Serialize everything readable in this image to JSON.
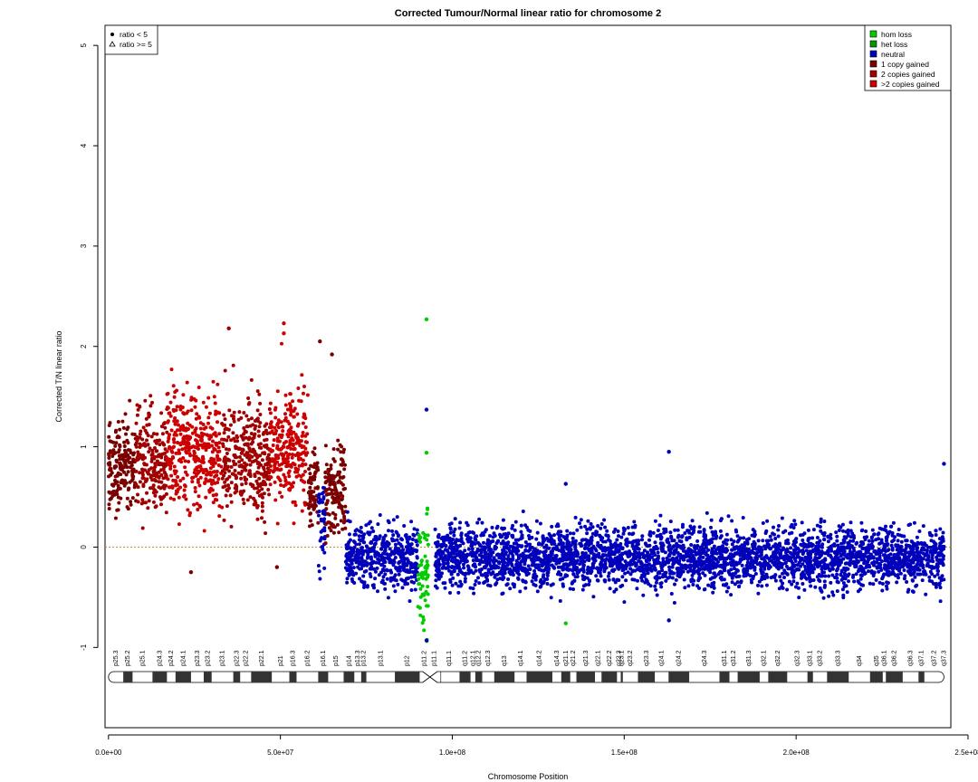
{
  "chart_data": {
    "type": "scatter",
    "title": "Corrected Tumour/Normal linear ratio for chromosome  2",
    "xlabel": "Chromosome Position",
    "ylabel": "Corrected T/N linear ratio",
    "xlim": [
      -1000000,
      245000000
    ],
    "ylim": [
      -1.8,
      5.2
    ],
    "x_ticks": [
      0,
      50000000,
      100000000,
      150000000,
      200000000,
      250000000
    ],
    "x_tick_labels": [
      "0.0e+00",
      "5.0e+07",
      "1.0e+08",
      "1.5e+08",
      "2.0e+08",
      "2.5e+08"
    ],
    "y_ticks": [
      -1,
      0,
      1,
      2,
      3,
      4,
      5
    ],
    "y_tick_labels": [
      "-1",
      "0",
      "1",
      "2",
      "3",
      "4",
      "5"
    ],
    "reference_line_y": 0,
    "grid": false,
    "shape_legend": {
      "position": "top-left",
      "entries": [
        {
          "symbol": "circle",
          "label": "ratio < 5"
        },
        {
          "symbol": "triangle",
          "label": "ratio >= 5"
        }
      ]
    },
    "legend": {
      "position": "top-right",
      "entries": [
        {
          "label": "hom loss",
          "color": "#00CC00"
        },
        {
          "label": "het loss",
          "color": "#009900"
        },
        {
          "label": "neutral",
          "color": "#0000BB"
        },
        {
          "label": "1 copy gained",
          "color": "#7A0000"
        },
        {
          "label": "2 copies gained",
          "color": "#A00000"
        },
        {
          "label": ">2 copies gained",
          "color": "#CC0000"
        }
      ]
    },
    "segments": [
      {
        "start": 0,
        "end": 8000000,
        "state": "1 copy gained",
        "mean": 0.78,
        "spread": 0.22
      },
      {
        "start": 8000000,
        "end": 17000000,
        "state": "2 copies gained",
        "mean": 0.85,
        "spread": 0.25
      },
      {
        "start": 17000000,
        "end": 33000000,
        "state": ">2 copies gained",
        "mean": 0.95,
        "spread": 0.28
      },
      {
        "start": 33000000,
        "end": 47000000,
        "state": "2 copies gained",
        "mean": 0.9,
        "spread": 0.27
      },
      {
        "start": 47000000,
        "end": 58000000,
        "state": ">2 copies gained",
        "mean": 0.98,
        "spread": 0.28
      },
      {
        "start": 58000000,
        "end": 61000000,
        "state": "1 copy gained",
        "mean": 0.55,
        "spread": 0.2
      },
      {
        "start": 61000000,
        "end": 63000000,
        "state": "neutral",
        "mean": 0.3,
        "spread": 0.25
      },
      {
        "start": 63000000,
        "end": 69000000,
        "state": "1 copy gained",
        "mean": 0.55,
        "spread": 0.22
      },
      {
        "start": 69000000,
        "end": 90000000,
        "state": "neutral",
        "mean": -0.1,
        "spread": 0.15
      },
      {
        "start": 90000000,
        "end": 93000000,
        "state": "hom loss",
        "mean": -0.3,
        "spread": 0.3
      },
      {
        "start": 95000000,
        "end": 243000000,
        "state": "neutral",
        "mean": -0.1,
        "spread": 0.15
      }
    ],
    "outliers": [
      {
        "x": 92500000,
        "y": 2.27,
        "state": "hom loss"
      },
      {
        "x": 92500000,
        "y": 1.37,
        "state": "neutral"
      },
      {
        "x": 92500000,
        "y": 0.94,
        "state": "hom loss"
      },
      {
        "x": 92500000,
        "y": -0.93,
        "state": "neutral"
      },
      {
        "x": 51000000,
        "y": 2.23,
        "state": ">2 copies gained"
      },
      {
        "x": 51000000,
        "y": 2.13,
        "state": ">2 copies gained"
      },
      {
        "x": 35000000,
        "y": 2.18,
        "state": "2 copies gained"
      },
      {
        "x": 61500000,
        "y": 2.05,
        "state": "1 copy gained"
      },
      {
        "x": 65000000,
        "y": 1.92,
        "state": "1 copy gained"
      },
      {
        "x": 163000000,
        "y": 0.95,
        "state": "neutral"
      },
      {
        "x": 163000000,
        "y": -0.73,
        "state": "neutral"
      },
      {
        "x": 243000000,
        "y": 0.83,
        "state": "neutral"
      },
      {
        "x": 133000000,
        "y": 0.63,
        "state": "neutral"
      },
      {
        "x": 133000000,
        "y": -0.76,
        "state": "hom loss"
      },
      {
        "x": 49000000,
        "y": -0.2,
        "state": "1 copy gained"
      },
      {
        "x": 24000000,
        "y": -0.25,
        "state": "1 copy gained"
      }
    ],
    "ideogram": {
      "centromere": 93500000,
      "length": 243000000,
      "bands": [
        {
          "name": "p25.3",
          "start": 0,
          "end": 4300000,
          "stain": "gneg"
        },
        {
          "name": "p25.2",
          "start": 4300000,
          "end": 7000000,
          "stain": "gpos"
        },
        {
          "name": "p25.1",
          "start": 7000000,
          "end": 12800000,
          "stain": "gneg"
        },
        {
          "name": "p24.3",
          "start": 12800000,
          "end": 17000000,
          "stain": "gpos"
        },
        {
          "name": "p24.2",
          "start": 17000000,
          "end": 19500000,
          "stain": "gneg"
        },
        {
          "name": "p24.1",
          "start": 19500000,
          "end": 24000000,
          "stain": "gpos"
        },
        {
          "name": "p23.3",
          "start": 24000000,
          "end": 27700000,
          "stain": "gneg"
        },
        {
          "name": "p23.2",
          "start": 27700000,
          "end": 30000000,
          "stain": "gpos"
        },
        {
          "name": "p23.1",
          "start": 30000000,
          "end": 36300000,
          "stain": "gneg"
        },
        {
          "name": "p22.3",
          "start": 36300000,
          "end": 38300000,
          "stain": "gpos"
        },
        {
          "name": "p22.2",
          "start": 38300000,
          "end": 41500000,
          "stain": "gneg"
        },
        {
          "name": "p22.1",
          "start": 41500000,
          "end": 47500000,
          "stain": "gpos"
        },
        {
          "name": "p21",
          "start": 47500000,
          "end": 52600000,
          "stain": "gneg"
        },
        {
          "name": "p16.3",
          "start": 52600000,
          "end": 54700000,
          "stain": "gpos"
        },
        {
          "name": "p16.2",
          "start": 54700000,
          "end": 61000000,
          "stain": "gneg"
        },
        {
          "name": "p16.1",
          "start": 61000000,
          "end": 63900000,
          "stain": "gpos"
        },
        {
          "name": "p15",
          "start": 63900000,
          "end": 68400000,
          "stain": "gneg"
        },
        {
          "name": "p14",
          "start": 68400000,
          "end": 71500000,
          "stain": "gpos"
        },
        {
          "name": "p13.3",
          "start": 71500000,
          "end": 73500000,
          "stain": "gneg"
        },
        {
          "name": "p13.2",
          "start": 73500000,
          "end": 75000000,
          "stain": "gpos"
        },
        {
          "name": "p13.1",
          "start": 75000000,
          "end": 83300000,
          "stain": "gneg"
        },
        {
          "name": "p12",
          "start": 83300000,
          "end": 90500000,
          "stain": "gpos"
        },
        {
          "name": "p11.2",
          "start": 90500000,
          "end": 93300000,
          "stain": "gneg"
        },
        {
          "name": "p11.1",
          "start": 93300000,
          "end": 96100000,
          "stain": "acen"
        },
        {
          "name": "q11.1",
          "start": 96100000,
          "end": 102100000,
          "stain": "gneg"
        },
        {
          "name": "q11.2",
          "start": 102100000,
          "end": 105300000,
          "stain": "gpos"
        },
        {
          "name": "q12.1",
          "start": 105300000,
          "end": 106700000,
          "stain": "gneg"
        },
        {
          "name": "q12.2",
          "start": 106700000,
          "end": 108700000,
          "stain": "gpos"
        },
        {
          "name": "q12.3",
          "start": 108700000,
          "end": 112200000,
          "stain": "gneg"
        },
        {
          "name": "q13",
          "start": 112200000,
          "end": 118100000,
          "stain": "gpos"
        },
        {
          "name": "q14.1",
          "start": 118100000,
          "end": 121600000,
          "stain": "gneg"
        },
        {
          "name": "q14.2",
          "start": 121600000,
          "end": 129100000,
          "stain": "gpos"
        },
        {
          "name": "q14.3",
          "start": 129100000,
          "end": 131700000,
          "stain": "gneg"
        },
        {
          "name": "q21.1",
          "start": 131700000,
          "end": 134300000,
          "stain": "gpos"
        },
        {
          "name": "q21.2",
          "start": 134300000,
          "end": 136100000,
          "stain": "gneg"
        },
        {
          "name": "q21.3",
          "start": 136100000,
          "end": 141500000,
          "stain": "gpos"
        },
        {
          "name": "q22.1",
          "start": 141500000,
          "end": 143400000,
          "stain": "gneg"
        },
        {
          "name": "q22.2",
          "start": 143400000,
          "end": 147900000,
          "stain": "gpos"
        },
        {
          "name": "q22.3",
          "start": 147900000,
          "end": 149000000,
          "stain": "gneg"
        },
        {
          "name": "q23.1",
          "start": 149000000,
          "end": 149600000,
          "stain": "gpos"
        },
        {
          "name": "q23.2",
          "start": 149600000,
          "end": 154000000,
          "stain": "gneg"
        },
        {
          "name": "q23.3",
          "start": 154000000,
          "end": 158900000,
          "stain": "gpos"
        },
        {
          "name": "q24.1",
          "start": 158900000,
          "end": 162900000,
          "stain": "gneg"
        },
        {
          "name": "q24.2",
          "start": 162900000,
          "end": 168900000,
          "stain": "gpos"
        },
        {
          "name": "q24.3",
          "start": 168900000,
          "end": 177700000,
          "stain": "gneg"
        },
        {
          "name": "q31.1",
          "start": 177700000,
          "end": 180600000,
          "stain": "gpos"
        },
        {
          "name": "q31.2",
          "start": 180600000,
          "end": 183000000,
          "stain": "gneg"
        },
        {
          "name": "q31.3",
          "start": 183000000,
          "end": 189400000,
          "stain": "gpos"
        },
        {
          "name": "q32.1",
          "start": 189400000,
          "end": 191900000,
          "stain": "gneg"
        },
        {
          "name": "q32.2",
          "start": 191900000,
          "end": 197400000,
          "stain": "gpos"
        },
        {
          "name": "q32.3",
          "start": 197400000,
          "end": 203300000,
          "stain": "gneg"
        },
        {
          "name": "q33.1",
          "start": 203300000,
          "end": 204900000,
          "stain": "gpos"
        },
        {
          "name": "q33.2",
          "start": 204900000,
          "end": 209000000,
          "stain": "gneg"
        },
        {
          "name": "q33.3",
          "start": 209000000,
          "end": 215300000,
          "stain": "gpos"
        },
        {
          "name": "q34",
          "start": 215300000,
          "end": 221500000,
          "stain": "gneg"
        },
        {
          "name": "q35",
          "start": 221500000,
          "end": 225200000,
          "stain": "gpos"
        },
        {
          "name": "q36.1",
          "start": 225200000,
          "end": 226100000,
          "stain": "gneg"
        },
        {
          "name": "q36.2",
          "start": 226100000,
          "end": 231000000,
          "stain": "gpos"
        },
        {
          "name": "q36.3",
          "start": 231000000,
          "end": 235600000,
          "stain": "gneg"
        },
        {
          "name": "q37.1",
          "start": 235600000,
          "end": 237300000,
          "stain": "gpos"
        },
        {
          "name": "q37.2",
          "start": 237300000,
          "end": 243000000,
          "stain": "gneg"
        },
        {
          "name": "q37.3",
          "start": 243000000,
          "end": 243000000,
          "stain": "gneg"
        }
      ]
    }
  }
}
